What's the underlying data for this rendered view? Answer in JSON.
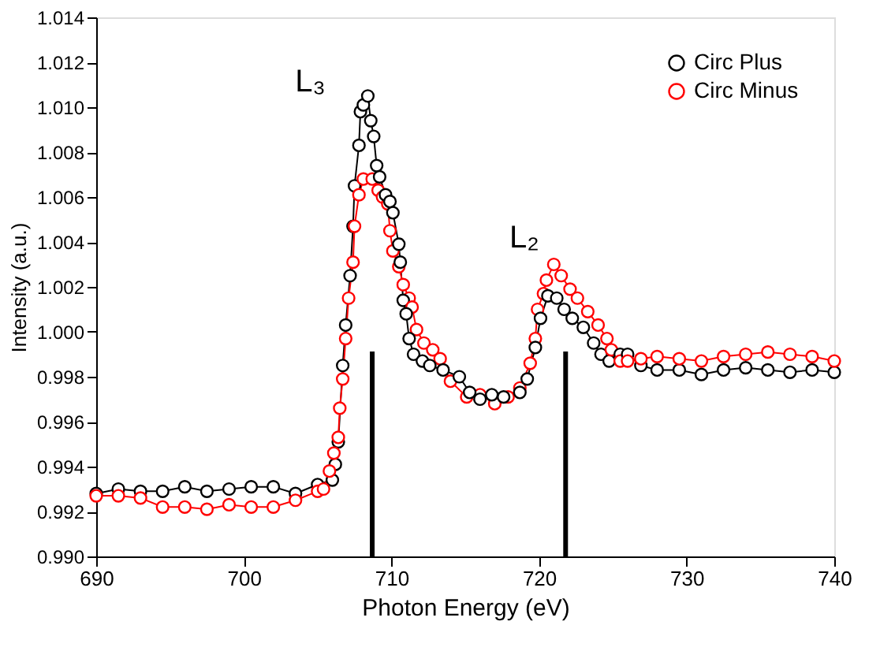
{
  "chart_data": {
    "type": "line",
    "xlabel": "Photon Energy (eV)",
    "ylabel": "Intensity (a.u.)",
    "xlim": [
      690,
      740
    ],
    "xticks": [
      690,
      700,
      710,
      720,
      730,
      740
    ],
    "ylim": [
      0.99,
      1.014
    ],
    "yticks": [
      {
        "value": 0.99,
        "label": "0.990"
      },
      {
        "value": 0.992,
        "label": "0.992"
      },
      {
        "value": 0.994,
        "label": "0.994"
      },
      {
        "value": 0.996,
        "label": "0.996"
      },
      {
        "value": 0.998,
        "label": "0.998"
      },
      {
        "value": 1.0,
        "label": "1.000"
      },
      {
        "value": 1.002,
        "label": "1.002"
      },
      {
        "value": 1.004,
        "label": "1.004"
      },
      {
        "value": 1.006,
        "label": "1.006"
      },
      {
        "value": 1.008,
        "label": "1.008"
      },
      {
        "value": 1.01,
        "label": "1.010"
      },
      {
        "value": 1.012,
        "label": "1.012"
      },
      {
        "value": 1.014,
        "label": "1.014"
      }
    ],
    "marker": "circle",
    "line_style": "solid",
    "grid": false,
    "legend": "top right",
    "series": [
      {
        "name": "Circ Plus",
        "color": "#000000",
        "x": [
          690,
          691.5,
          693,
          694.5,
          696,
          697.5,
          699,
          700.5,
          702,
          703.5,
          705,
          706.0,
          706.2,
          706.4,
          706.7,
          706.9,
          707.2,
          707.4,
          707.5,
          707.8,
          707.9,
          708.1,
          708.4,
          708.6,
          708.8,
          709.0,
          709.2,
          709.6,
          709.9,
          710.1,
          710.5,
          710.6,
          710.8,
          711.0,
          711.2,
          711.5,
          712.1,
          712.6,
          713.5,
          714.6,
          715.3,
          716.0,
          716.8,
          717.6,
          718.7,
          719.2,
          719.75,
          720.1,
          720.6,
          721.2,
          721.7,
          722.25,
          723.0,
          723.7,
          724.2,
          724.75,
          725.5,
          726.0,
          726.9,
          728.0,
          729.5,
          731.0,
          732.5,
          734.0,
          735.5,
          737.0,
          738.5,
          740.0
        ],
        "values": [
          0.9928,
          0.993,
          0.9929,
          0.9929,
          0.9931,
          0.9929,
          0.993,
          0.9931,
          0.9931,
          0.9928,
          0.9932,
          0.9934,
          0.9941,
          0.9951,
          0.9985,
          1.0003,
          1.0025,
          1.0047,
          1.0065,
          1.0083,
          1.0098,
          1.0101,
          1.0105,
          1.0094,
          1.0087,
          1.0074,
          1.0069,
          1.0061,
          1.0058,
          1.0053,
          1.0039,
          1.0031,
          1.0014,
          1.0008,
          0.9997,
          0.999,
          0.9987,
          0.9985,
          0.9983,
          0.998,
          0.9973,
          0.997,
          0.9972,
          0.9971,
          0.9973,
          0.9979,
          0.9993,
          1.0006,
          1.0016,
          1.0015,
          1.001,
          1.0006,
          1.0002,
          0.9995,
          0.999,
          0.9987,
          0.999,
          0.999,
          0.9985,
          0.9983,
          0.9983,
          0.9981,
          0.9983,
          0.9984,
          0.9983,
          0.9982,
          0.9983,
          0.9982
        ]
      },
      {
        "name": "Circ Minus",
        "color": "#ff0000",
        "x": [
          690,
          691.5,
          693,
          694.5,
          696,
          697.5,
          699,
          700.5,
          702,
          703.5,
          705,
          705.4,
          705.8,
          706.1,
          706.4,
          706.5,
          706.7,
          706.9,
          707.1,
          707.4,
          707.5,
          707.8,
          708.1,
          708.7,
          709.1,
          709.4,
          709.75,
          709.9,
          710.1,
          710.5,
          710.8,
          711.2,
          711.4,
          711.7,
          712.2,
          712.8,
          713.3,
          714.0,
          715.1,
          716.0,
          717.0,
          717.9,
          718.7,
          719.4,
          719.75,
          719.9,
          720.3,
          720.5,
          721.0,
          721.5,
          722.1,
          722.6,
          723.3,
          724.0,
          724.6,
          724.9,
          725.5,
          726.0,
          726.9,
          728.0,
          729.5,
          731.0,
          732.5,
          734.0,
          735.5,
          737.0,
          738.5,
          740.0
        ],
        "values": [
          0.9927,
          0.9927,
          0.9926,
          0.9922,
          0.9922,
          0.9921,
          0.9923,
          0.9922,
          0.9922,
          0.9925,
          0.9929,
          0.993,
          0.9938,
          0.9946,
          0.9953,
          0.9966,
          0.9979,
          0.9997,
          1.0015,
          1.0031,
          1.0047,
          1.0061,
          1.0068,
          1.0068,
          1.0063,
          1.006,
          1.0057,
          1.0045,
          1.0036,
          1.0029,
          1.0021,
          1.0015,
          1.0011,
          1.0001,
          0.9995,
          0.9992,
          0.9988,
          0.9978,
          0.9971,
          0.9972,
          0.9968,
          0.9971,
          0.9975,
          0.9986,
          0.9997,
          1.001,
          1.0017,
          1.0023,
          1.003,
          1.0025,
          1.0019,
          1.0015,
          1.0009,
          1.0003,
          0.9997,
          0.9992,
          0.9987,
          0.9987,
          0.9988,
          0.9989,
          0.9988,
          0.9987,
          0.9989,
          0.999,
          0.9991,
          0.999,
          0.9989,
          0.9987
        ]
      }
    ],
    "annotations": [
      "L₃",
      "L₂"
    ],
    "ref_lines": [
      {
        "axis": "x",
        "value": 708.7,
        "color": "#000000"
      },
      {
        "axis": "x",
        "value": 721.8,
        "color": "#000000"
      }
    ]
  }
}
